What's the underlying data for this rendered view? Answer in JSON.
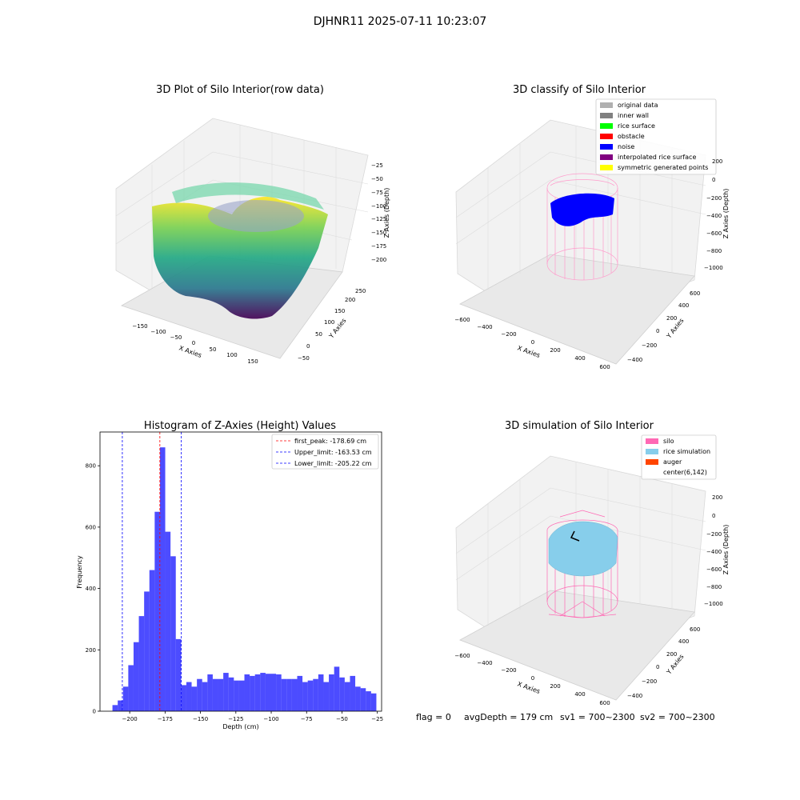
{
  "figure": {
    "suptitle": "DJHNR11 2025-07-11 10:23:07",
    "status": {
      "flag": "flag = 0",
      "avg_depth": "avgDepth = 179 cm",
      "sv1": "sv1 = 700~2300",
      "sv2": "sv2 = 700~2300"
    }
  },
  "panels": {
    "raw": {
      "title": "3D Plot of Silo Interior(row data)",
      "xlabel": "X Axies",
      "ylabel": "Y Axies",
      "zlabel": "Z Axies (Depth)",
      "xticks": [
        "−150",
        "−100",
        "−50",
        "0",
        "50",
        "100",
        "150"
      ],
      "yticks": [
        "−50",
        "0",
        "50",
        "100",
        "150",
        "200",
        "250"
      ],
      "zticks": [
        "−25",
        "−50",
        "−75",
        "−100",
        "−125",
        "−150",
        "−175",
        "−200"
      ]
    },
    "classify": {
      "title": "3D classify of Silo Interior",
      "xlabel": "X Axies",
      "ylabel": "Y Axies",
      "zlabel": "Z Axies (Depth)",
      "xticks": [
        "−600",
        "−400",
        "−200",
        "0",
        "200",
        "400",
        "600"
      ],
      "yticks": [
        "−400",
        "−200",
        "0",
        "200",
        "400",
        "600"
      ],
      "zticks": [
        "200",
        "0",
        "−200",
        "−400",
        "−600",
        "−800",
        "−1000"
      ],
      "legend": [
        {
          "label": "original data",
          "color": "#b0b0b0"
        },
        {
          "label": "inner wall",
          "color": "#808080"
        },
        {
          "label": "rice surface",
          "color": "#00ff00"
        },
        {
          "label": "obstacle",
          "color": "#ff0000"
        },
        {
          "label": "noise",
          "color": "#0000ff"
        },
        {
          "label": "interpolated rice surface",
          "color": "#800080"
        },
        {
          "label": "symmetric generated points",
          "color": "#ffff00"
        }
      ]
    },
    "simulation": {
      "title": "3D simulation of Silo Interior",
      "xlabel": "X Axies",
      "ylabel": "Y Axies",
      "zlabel": "Z Axies (Depth)",
      "xticks": [
        "−600",
        "−400",
        "−200",
        "0",
        "200",
        "400",
        "600"
      ],
      "yticks": [
        "−400",
        "−200",
        "0",
        "200",
        "400",
        "600"
      ],
      "zticks": [
        "200",
        "0",
        "−200",
        "−400",
        "−600",
        "−800",
        "−1000"
      ],
      "legend": [
        {
          "label": "silo",
          "color": "#ff69b4"
        },
        {
          "label": "rice simulation",
          "color": "#87ceeb"
        },
        {
          "label": "auger",
          "color": "#ff4500"
        },
        {
          "label": "center(6,142)",
          "color": "#ffffff"
        }
      ]
    }
  },
  "chart_data": [
    {
      "type": "bar",
      "title": "Histogram of Z-Axies (Height) Values",
      "xlabel": "Depth (cm)",
      "ylabel": "Frequency",
      "xlim": [
        -221,
        -22
      ],
      "ylim": [
        0,
        910
      ],
      "xticks": [
        -200,
        -175,
        -150,
        -125,
        -100,
        -75,
        -50,
        -25
      ],
      "xtick_labels": [
        "−200",
        "−175",
        "−150",
        "−125",
        "−100",
        "−75",
        "−50",
        "−25"
      ],
      "yticks": [
        0,
        200,
        400,
        600,
        800
      ],
      "ytick_labels": [
        "0",
        "200",
        "400",
        "600",
        "800"
      ],
      "bar_color": "#0000ff",
      "bins": {
        "start": -212.2,
        "width": 3.73,
        "counts": [
          20,
          35,
          80,
          150,
          225,
          310,
          390,
          460,
          650,
          860,
          585,
          505,
          235,
          85,
          95,
          80,
          105,
          95,
          120,
          105,
          105,
          125,
          110,
          100,
          100,
          120,
          115,
          120,
          125,
          122,
          122,
          120,
          105,
          105,
          105,
          115,
          95,
          100,
          105,
          120,
          95,
          120,
          145,
          110,
          95,
          115,
          80,
          75,
          65,
          58
        ]
      },
      "legend_placement": "upper right",
      "lines": [
        {
          "label": "first_peak: -178.69 cm",
          "x": -178.69,
          "color": "#ff0000"
        },
        {
          "label": "Upper_limit: -163.53 cm",
          "x": -163.53,
          "color": "#0000ff"
        },
        {
          "label": "Lower_limit: -205.22 cm",
          "x": -205.22,
          "color": "#0000ff"
        }
      ]
    }
  ]
}
